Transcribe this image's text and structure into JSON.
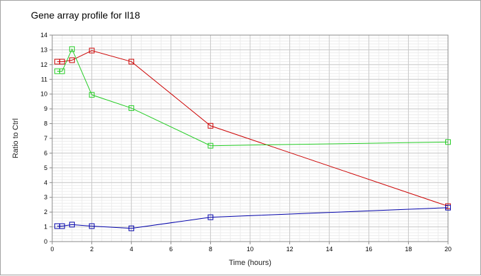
{
  "chart_data": {
    "type": "line",
    "title": "Gene array profile for Il18",
    "xlabel": "Time (hours)",
    "ylabel": "Ratio to Ctrl",
    "xlim": [
      0,
      20
    ],
    "ylim": [
      0,
      14
    ],
    "x_ticks": [
      0,
      2,
      4,
      6,
      8,
      10,
      12,
      14,
      16,
      18,
      20
    ],
    "y_ticks": [
      0,
      1,
      2,
      3,
      4,
      5,
      6,
      7,
      8,
      9,
      10,
      11,
      12,
      13,
      14
    ],
    "grid": true,
    "legend": "none",
    "series": [
      {
        "color": "#cc0000",
        "x": [
          0.25,
          0.5,
          1,
          2,
          4,
          8,
          20
        ],
        "y": [
          12.2,
          12.2,
          12.3,
          12.95,
          12.2,
          7.85,
          2.4
        ]
      },
      {
        "color": "#22cc22",
        "x": [
          0.25,
          0.5,
          1,
          2,
          4,
          8,
          20
        ],
        "y": [
          11.55,
          11.55,
          13.05,
          9.95,
          9.05,
          6.5,
          6.75
        ]
      },
      {
        "color": "#0000aa",
        "x": [
          0.25,
          0.5,
          1,
          2,
          4,
          8,
          20
        ],
        "y": [
          1.05,
          1.05,
          1.15,
          1.05,
          0.9,
          1.65,
          2.3
        ]
      }
    ]
  }
}
